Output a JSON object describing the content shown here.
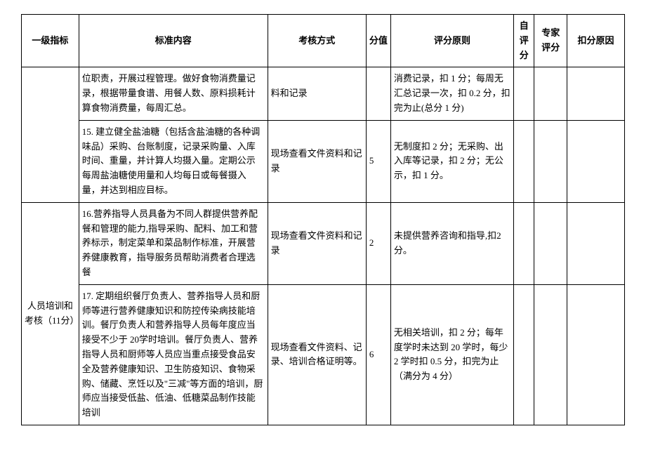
{
  "headers": {
    "indicator": "一级指标",
    "content": "标准内容",
    "method": "考核方式",
    "score": "分值",
    "principle": "评分原则",
    "self": "自评分",
    "expert": "专家评分",
    "deduct": "扣分原因"
  },
  "section1_label": "",
  "section2_label": "人员培训和考核（11分）",
  "rows": [
    {
      "content": "位职责，开展过程管理。做好食物消费量记录，根据带量食谱、用餐人数、原料损耗计算食物消费量，每周汇总。",
      "method": "料和记录",
      "score": "",
      "principle": "消费记录，扣 1 分；每周无汇总记录一次，扣 0.2 分，扣完为止(总分 1 分)"
    },
    {
      "content": "15. 建立健全盐油糖（包括含盐油糖的各种调味品）采购、台账制度，记录采购量、入库时间、重量，并计算人均摄入量。定期公示每周盐油糖使用量和人均每日或每餐摄入量，并达到相应目标。",
      "method": "现场查看文件资料和记录",
      "score": "5",
      "principle": "无制度扣 2 分；无采购、出入库等记录，扣 2 分；无公示，扣 1 分。"
    },
    {
      "content": "16.营养指导人员具备为不同人群提供营养配餐和管理的能力,指导采购、配料、加工和营养标示，制定菜单和菜品制作标准，开展营养健康教育，指导服务员帮助消费者合理选餐",
      "method": "现场查看文件资料和记录",
      "score": "2",
      "principle": "未提供营养咨询和指导,扣2 分。"
    },
    {
      "content": "17. 定期组织餐厅负责人、营养指导人员和厨师等进行营养健康知识和防控传染病技能培训。餐厅负责人和营养指导人员每年度应当接受不少于 20学时培训。餐厅负责人、营养指导人员和厨师等人员应当重点接受食品安全及营养健康知识、卫生防疫知识、食物采购、储藏、烹饪以及\"三减\"等方面的培训，厨师应当接受低盐、低油、低糖菜品制作技能培训",
      "method": "现场查看文件资料、记录、培训合格证明等。",
      "score": "6",
      "principle": "无相关培训，扣 2 分；每年度学时未达到 20 学时，每少 2 学时扣 0.5 分，扣完为止（满分为 4 分）"
    }
  ]
}
